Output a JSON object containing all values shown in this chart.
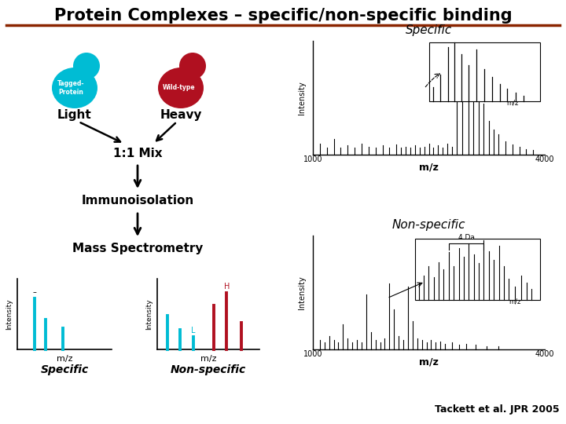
{
  "title": "Protein Complexes – specific/non-specific binding",
  "title_color": "#000000",
  "title_underline_color": "#8B2500",
  "bg_color": "#FFFFFF",
  "cyan_color": "#00BCD4",
  "red_color": "#B01020",
  "citation": "Tackett et al. JPR 2005",
  "light_label": "Light",
  "heavy_label": "Heavy",
  "mix_label": "1:1 Mix",
  "immuno_label": "Immunoisolation",
  "ms_label": "Mass Spectrometry",
  "specific_label": "Specific",
  "nonspecific_label": "Non-specific",
  "tagged_protein_label": "Tagged-\nProtein",
  "wildtype_label": "Wild-type"
}
